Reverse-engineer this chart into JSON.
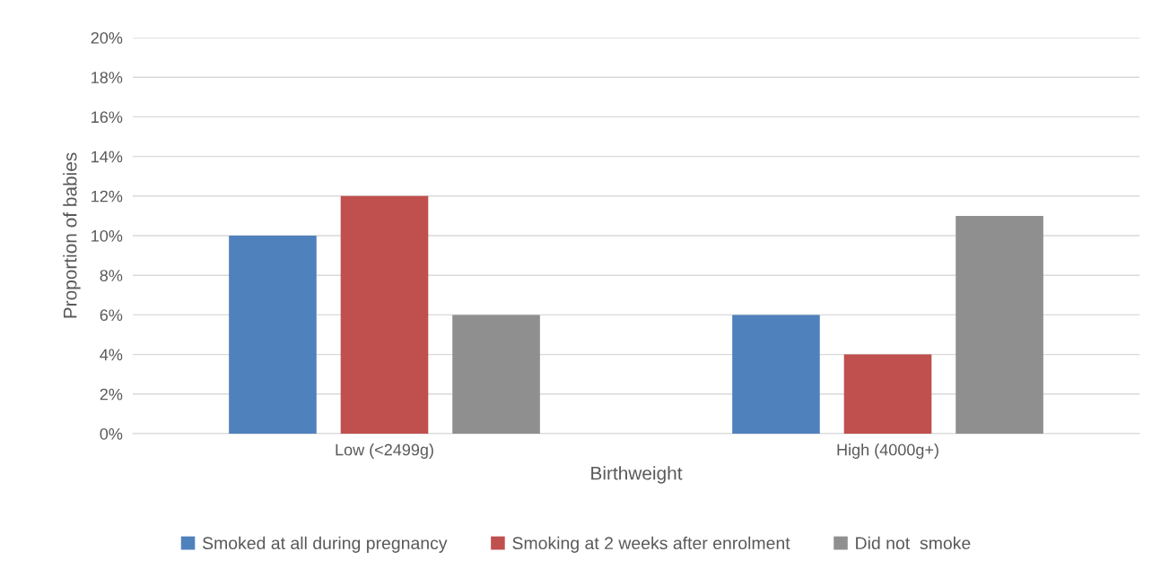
{
  "chart_data": {
    "type": "bar",
    "xlabel": "Birthweight",
    "ylabel": "Proportion of babies",
    "categories": [
      "Low (<2499g)",
      "High (4000g+)"
    ],
    "series": [
      {
        "name": "Smoked at all during pregnancy",
        "color": "#4f81bd",
        "values": [
          10,
          6
        ]
      },
      {
        "name": "Smoking at 2 weeks after enrolment",
        "color": "#c0504d",
        "values": [
          12,
          4
        ]
      },
      {
        "name": "Did not  smoke",
        "color": "#8f8f8f",
        "values": [
          6,
          11
        ]
      }
    ],
    "ylim": [
      0,
      20
    ],
    "yticks": [
      {
        "value": 0,
        "label": "0%"
      },
      {
        "value": 2,
        "label": "2%"
      },
      {
        "value": 4,
        "label": "4%"
      },
      {
        "value": 6,
        "label": "6%"
      },
      {
        "value": 8,
        "label": "8%"
      },
      {
        "value": 10,
        "label": "10%"
      },
      {
        "value": 12,
        "label": "12%"
      },
      {
        "value": 14,
        "label": "14%"
      },
      {
        "value": 16,
        "label": "16%"
      },
      {
        "value": 18,
        "label": "18%"
      },
      {
        "value": 20,
        "label": "20%"
      }
    ],
    "grid": "y",
    "legend": "bottom"
  }
}
